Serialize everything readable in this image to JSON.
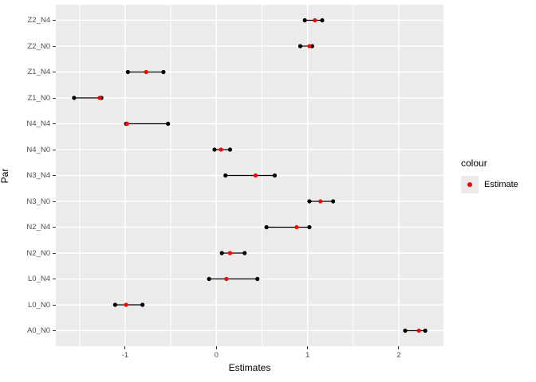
{
  "chart_data": {
    "type": "pointrange",
    "title": "",
    "xlabel": "Estimates",
    "ylabel": "Par",
    "grid": true,
    "categories": [
      "Z2_N4",
      "Z2_N0",
      "Z1_N4",
      "Z1_N0",
      "N4_N4",
      "N4_N0",
      "N3_N4",
      "N3_N0",
      "N2_N4",
      "N2_N0",
      "L0_N4",
      "L0_N0",
      "A0_N0"
    ],
    "rows": [
      {
        "par": "Z2_N4",
        "low": 0.97,
        "estimate": 1.08,
        "high": 1.16
      },
      {
        "par": "Z2_N0",
        "low": 0.92,
        "estimate": 1.02,
        "high": 1.05
      },
      {
        "par": "Z1_N4",
        "low": -0.97,
        "estimate": -0.77,
        "high": -0.58
      },
      {
        "par": "Z1_N0",
        "low": -1.56,
        "estimate": -1.28,
        "high": -1.26
      },
      {
        "par": "N4_N4",
        "low": -0.99,
        "estimate": -0.98,
        "high": -0.53
      },
      {
        "par": "N4_N0",
        "low": -0.02,
        "estimate": 0.05,
        "high": 0.15
      },
      {
        "par": "N3_N4",
        "low": 0.1,
        "estimate": 0.43,
        "high": 0.64
      },
      {
        "par": "N3_N0",
        "low": 1.02,
        "estimate": 1.14,
        "high": 1.28
      },
      {
        "par": "N2_N4",
        "low": 0.55,
        "estimate": 0.88,
        "high": 1.02
      },
      {
        "par": "N2_N0",
        "low": 0.06,
        "estimate": 0.15,
        "high": 0.31
      },
      {
        "par": "L0_N4",
        "low": -0.08,
        "estimate": 0.11,
        "high": 0.45
      },
      {
        "par": "L0_N0",
        "low": -1.11,
        "estimate": -0.99,
        "high": -0.81
      },
      {
        "par": "A0_N0",
        "low": 2.07,
        "estimate": 2.22,
        "high": 2.29
      }
    ],
    "x_ticks": [
      -1,
      0,
      1,
      2
    ],
    "x_minor_ticks": [
      -1.5,
      -0.5,
      0.5,
      1.5
    ],
    "xlim": [
      -1.76,
      2.49
    ],
    "legend": {
      "title": "colour",
      "position": "right",
      "items": [
        {
          "label": "Estimate",
          "color": "#FF0000"
        }
      ]
    },
    "colors": {
      "panel_background": "#EBEBEB",
      "gridline": "#FFFFFF",
      "range_line": "#000000",
      "endpoint_dot": "#000000",
      "estimate_dot": "#FF0000",
      "axis_text": "#4D4D4D",
      "axis_title": "#000000",
      "tick_mark": "#333333",
      "legend_key_background": "#EBEBEB"
    }
  }
}
